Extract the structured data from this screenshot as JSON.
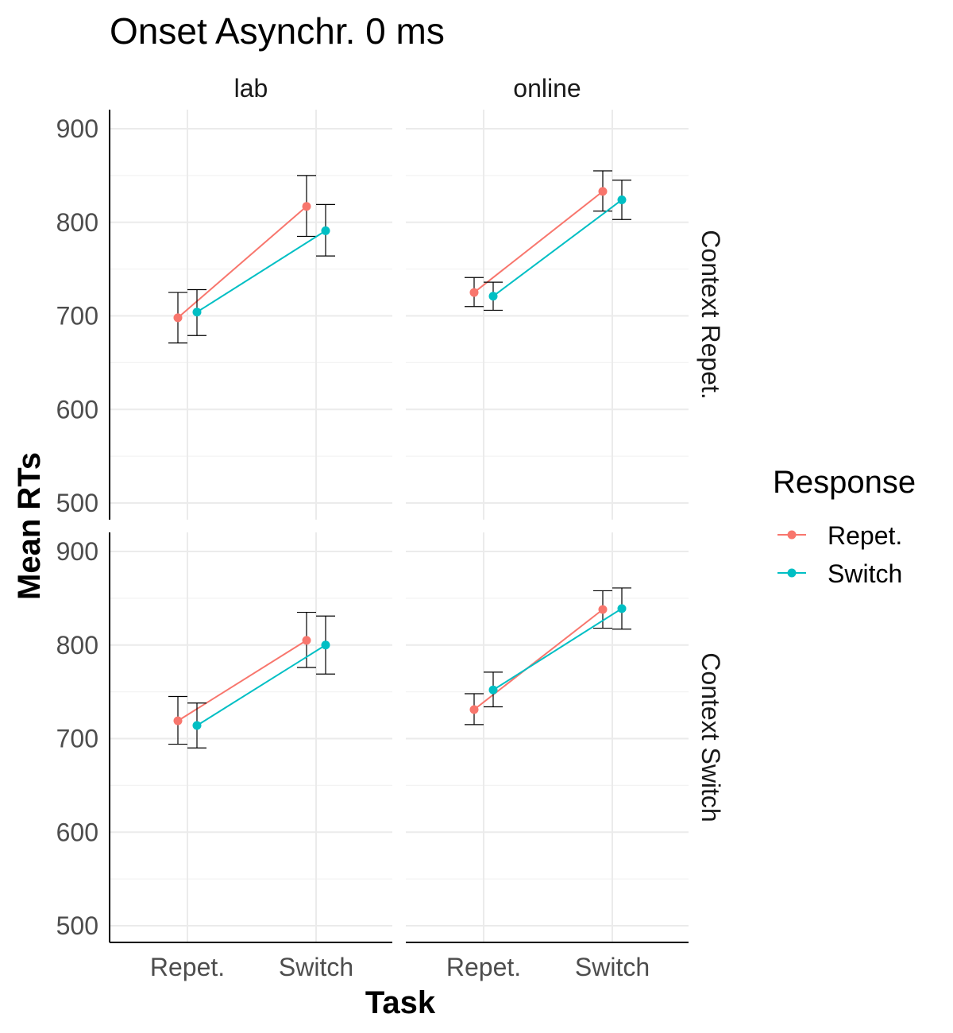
{
  "chart_data": {
    "type": "line",
    "title": "Onset Asynchr. 0 ms",
    "xlabel": "Task",
    "ylabel": "Mean RTs",
    "categories": [
      "Repet.",
      "Switch"
    ],
    "ylim": [
      480,
      920
    ],
    "yticks": [
      500,
      600,
      700,
      800,
      900
    ],
    "grid": true,
    "facet_columns": [
      "lab",
      "online"
    ],
    "facet_rows": [
      "Context Repet.",
      "Context Switch"
    ],
    "legend": {
      "title": "Response",
      "position": "right",
      "entries": [
        {
          "label": "Repet.",
          "color": "#F8766D"
        },
        {
          "label": "Switch",
          "color": "#00BFC4"
        }
      ]
    },
    "panels": [
      {
        "column": "lab",
        "row": "Context Repet.",
        "series": [
          {
            "name": "Repet.",
            "color": "#F8766D",
            "values": [
              698,
              817
            ],
            "lower": [
              671,
              785
            ],
            "upper": [
              725,
              850
            ]
          },
          {
            "name": "Switch",
            "color": "#00BFC4",
            "values": [
              704,
              791
            ],
            "lower": [
              679,
              764
            ],
            "upper": [
              728,
              819
            ]
          }
        ]
      },
      {
        "column": "online",
        "row": "Context Repet.",
        "series": [
          {
            "name": "Repet.",
            "color": "#F8766D",
            "values": [
              725,
              833
            ],
            "lower": [
              710,
              812
            ],
            "upper": [
              741,
              855
            ]
          },
          {
            "name": "Switch",
            "color": "#00BFC4",
            "values": [
              721,
              824
            ],
            "lower": [
              706,
              803
            ],
            "upper": [
              736,
              845
            ]
          }
        ]
      },
      {
        "column": "lab",
        "row": "Context Switch",
        "series": [
          {
            "name": "Repet.",
            "color": "#F8766D",
            "values": [
              719,
              805
            ],
            "lower": [
              694,
              776
            ],
            "upper": [
              745,
              835
            ]
          },
          {
            "name": "Switch",
            "color": "#00BFC4",
            "values": [
              714,
              800
            ],
            "lower": [
              690,
              769
            ],
            "upper": [
              738,
              831
            ]
          }
        ]
      },
      {
        "column": "online",
        "row": "Context Switch",
        "series": [
          {
            "name": "Repet.",
            "color": "#F8766D",
            "values": [
              731,
              838
            ],
            "lower": [
              715,
              818
            ],
            "upper": [
              748,
              858
            ]
          },
          {
            "name": "Switch",
            "color": "#00BFC4",
            "values": [
              752,
              839
            ],
            "lower": [
              734,
              817
            ],
            "upper": [
              771,
              861
            ]
          }
        ]
      }
    ]
  }
}
